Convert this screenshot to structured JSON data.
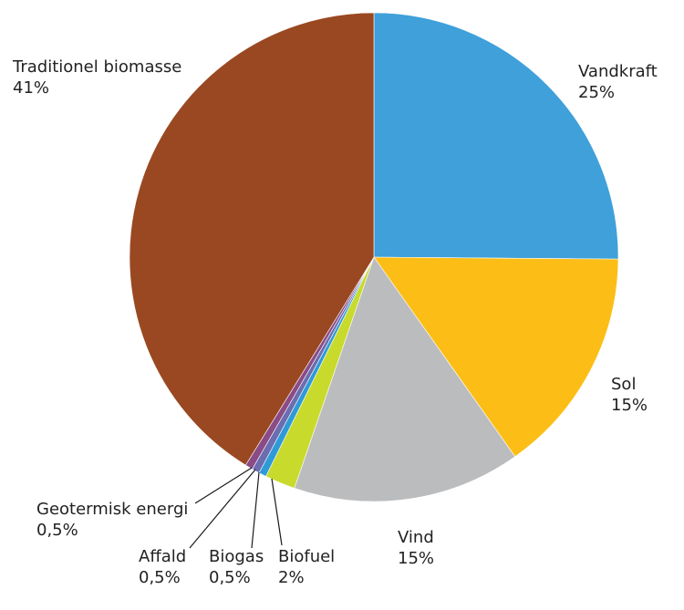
{
  "chart_data": {
    "type": "pie",
    "start_angle_deg": 0,
    "direction": "clockwise",
    "slices": [
      {
        "name": "Vandkraft",
        "value": 25,
        "value_label": "25%",
        "color": "#3FA0DA"
      },
      {
        "name": "Sol",
        "value": 15,
        "value_label": "15%",
        "color": "#FCBE16"
      },
      {
        "name": "Vind",
        "value": 15,
        "value_label": "15%",
        "color": "#BBBCBE"
      },
      {
        "name": "Biofuel",
        "value": 2,
        "value_label": "2%",
        "color": "#C8DA2C"
      },
      {
        "name": "Biogas",
        "value": 0.5,
        "value_label": "0,5%",
        "color": "#2E9AD6"
      },
      {
        "name": "Affald",
        "value": 0.5,
        "value_label": "0,5%",
        "color": "#6A6DB0"
      },
      {
        "name": "Geotermisk energi",
        "value": 0.5,
        "value_label": "0,5%",
        "color": "#8A4B86"
      },
      {
        "name": "Traditionel biomasse",
        "value": 41,
        "value_label": "41%",
        "color": "#9A4822"
      }
    ]
  }
}
